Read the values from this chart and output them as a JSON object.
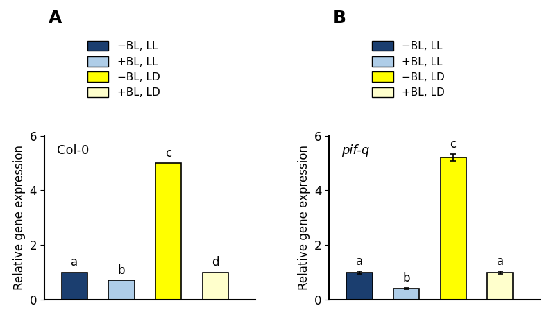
{
  "panel_A": {
    "title": "Col-0",
    "title_style": "normal",
    "values": [
      1.0,
      0.7,
      5.0,
      1.0
    ],
    "errors": [
      0.0,
      0.0,
      0.0,
      0.0
    ],
    "labels": [
      "a",
      "b",
      "c",
      "d"
    ]
  },
  "panel_B": {
    "title": "pif-q",
    "title_style": "italic",
    "values": [
      1.0,
      0.4,
      5.2,
      1.0
    ],
    "errors": [
      0.05,
      0.03,
      0.12,
      0.05
    ],
    "labels": [
      "a",
      "b",
      "c",
      "a"
    ]
  },
  "bar_colors": [
    "#1b3e6f",
    "#aecde8",
    "#ffff00",
    "#ffffcc"
  ],
  "bar_edgecolors": [
    "#000000",
    "#000000",
    "#000000",
    "#000000"
  ],
  "legend_labels": [
    "−BL, LL",
    "+BL, LL",
    "−BL, LD",
    "+BL, LD"
  ],
  "ylabel": "Relative gene expression",
  "ylim": [
    0,
    6
  ],
  "yticks": [
    0,
    2,
    4,
    6
  ],
  "panel_labels": [
    "A",
    "B"
  ],
  "bar_width": 0.55,
  "x_positions": [
    1,
    2,
    3,
    4
  ]
}
